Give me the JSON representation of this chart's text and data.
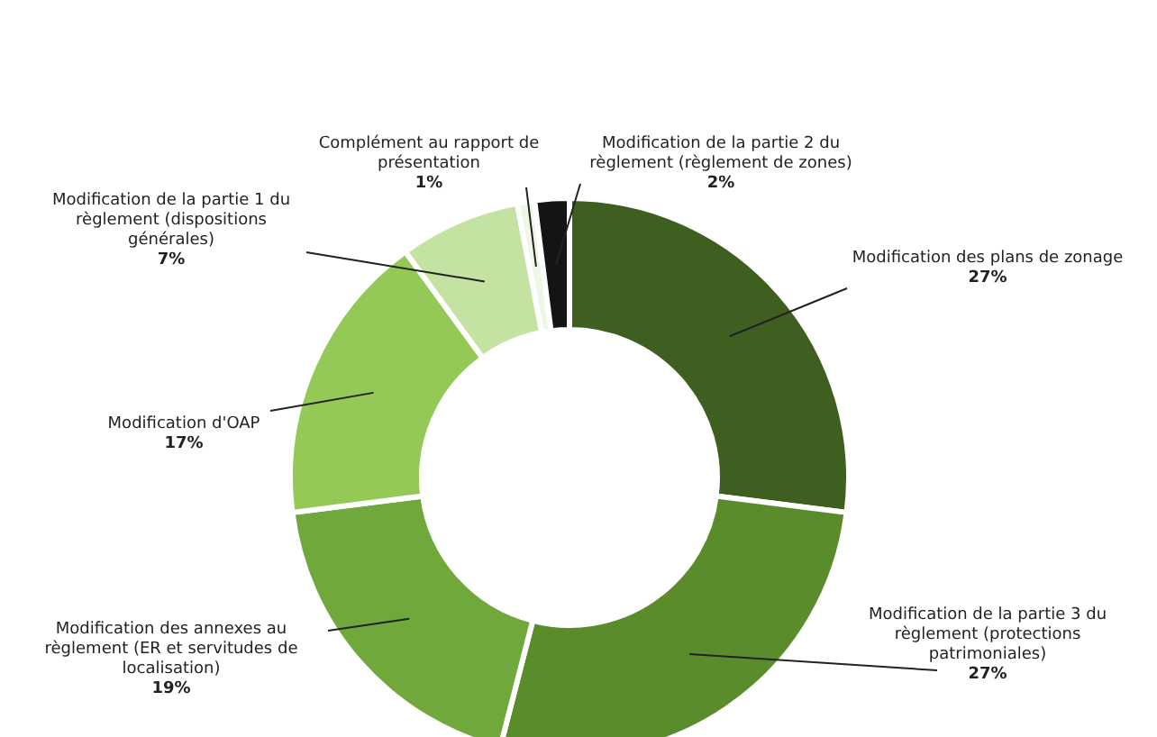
{
  "chart_data": {
    "type": "donut",
    "categories": [
      "Modification des plans de zonage",
      "Modification de la partie 3 du règlement (protections patrimoniales)",
      "Modification des annexes au règlement (ER et servitudes de localisation)",
      "Modification d'OAP",
      "Modification de la partie 1 du règlement (dispositions générales)",
      "Complément au rapport de présentation",
      "Modification de la partie 2 du règlement (règlement de zones)"
    ],
    "values": [
      27,
      27,
      19,
      17,
      7,
      1,
      2
    ],
    "value_labels": [
      "27%",
      "27%",
      "19%",
      "17%",
      "7%",
      "1%",
      "2%"
    ],
    "colors": [
      "#3e5f1f",
      "#5b8c2b",
      "#70a83c",
      "#95c957",
      "#c4e3a2",
      "#eef6e6",
      "#141414"
    ]
  }
}
